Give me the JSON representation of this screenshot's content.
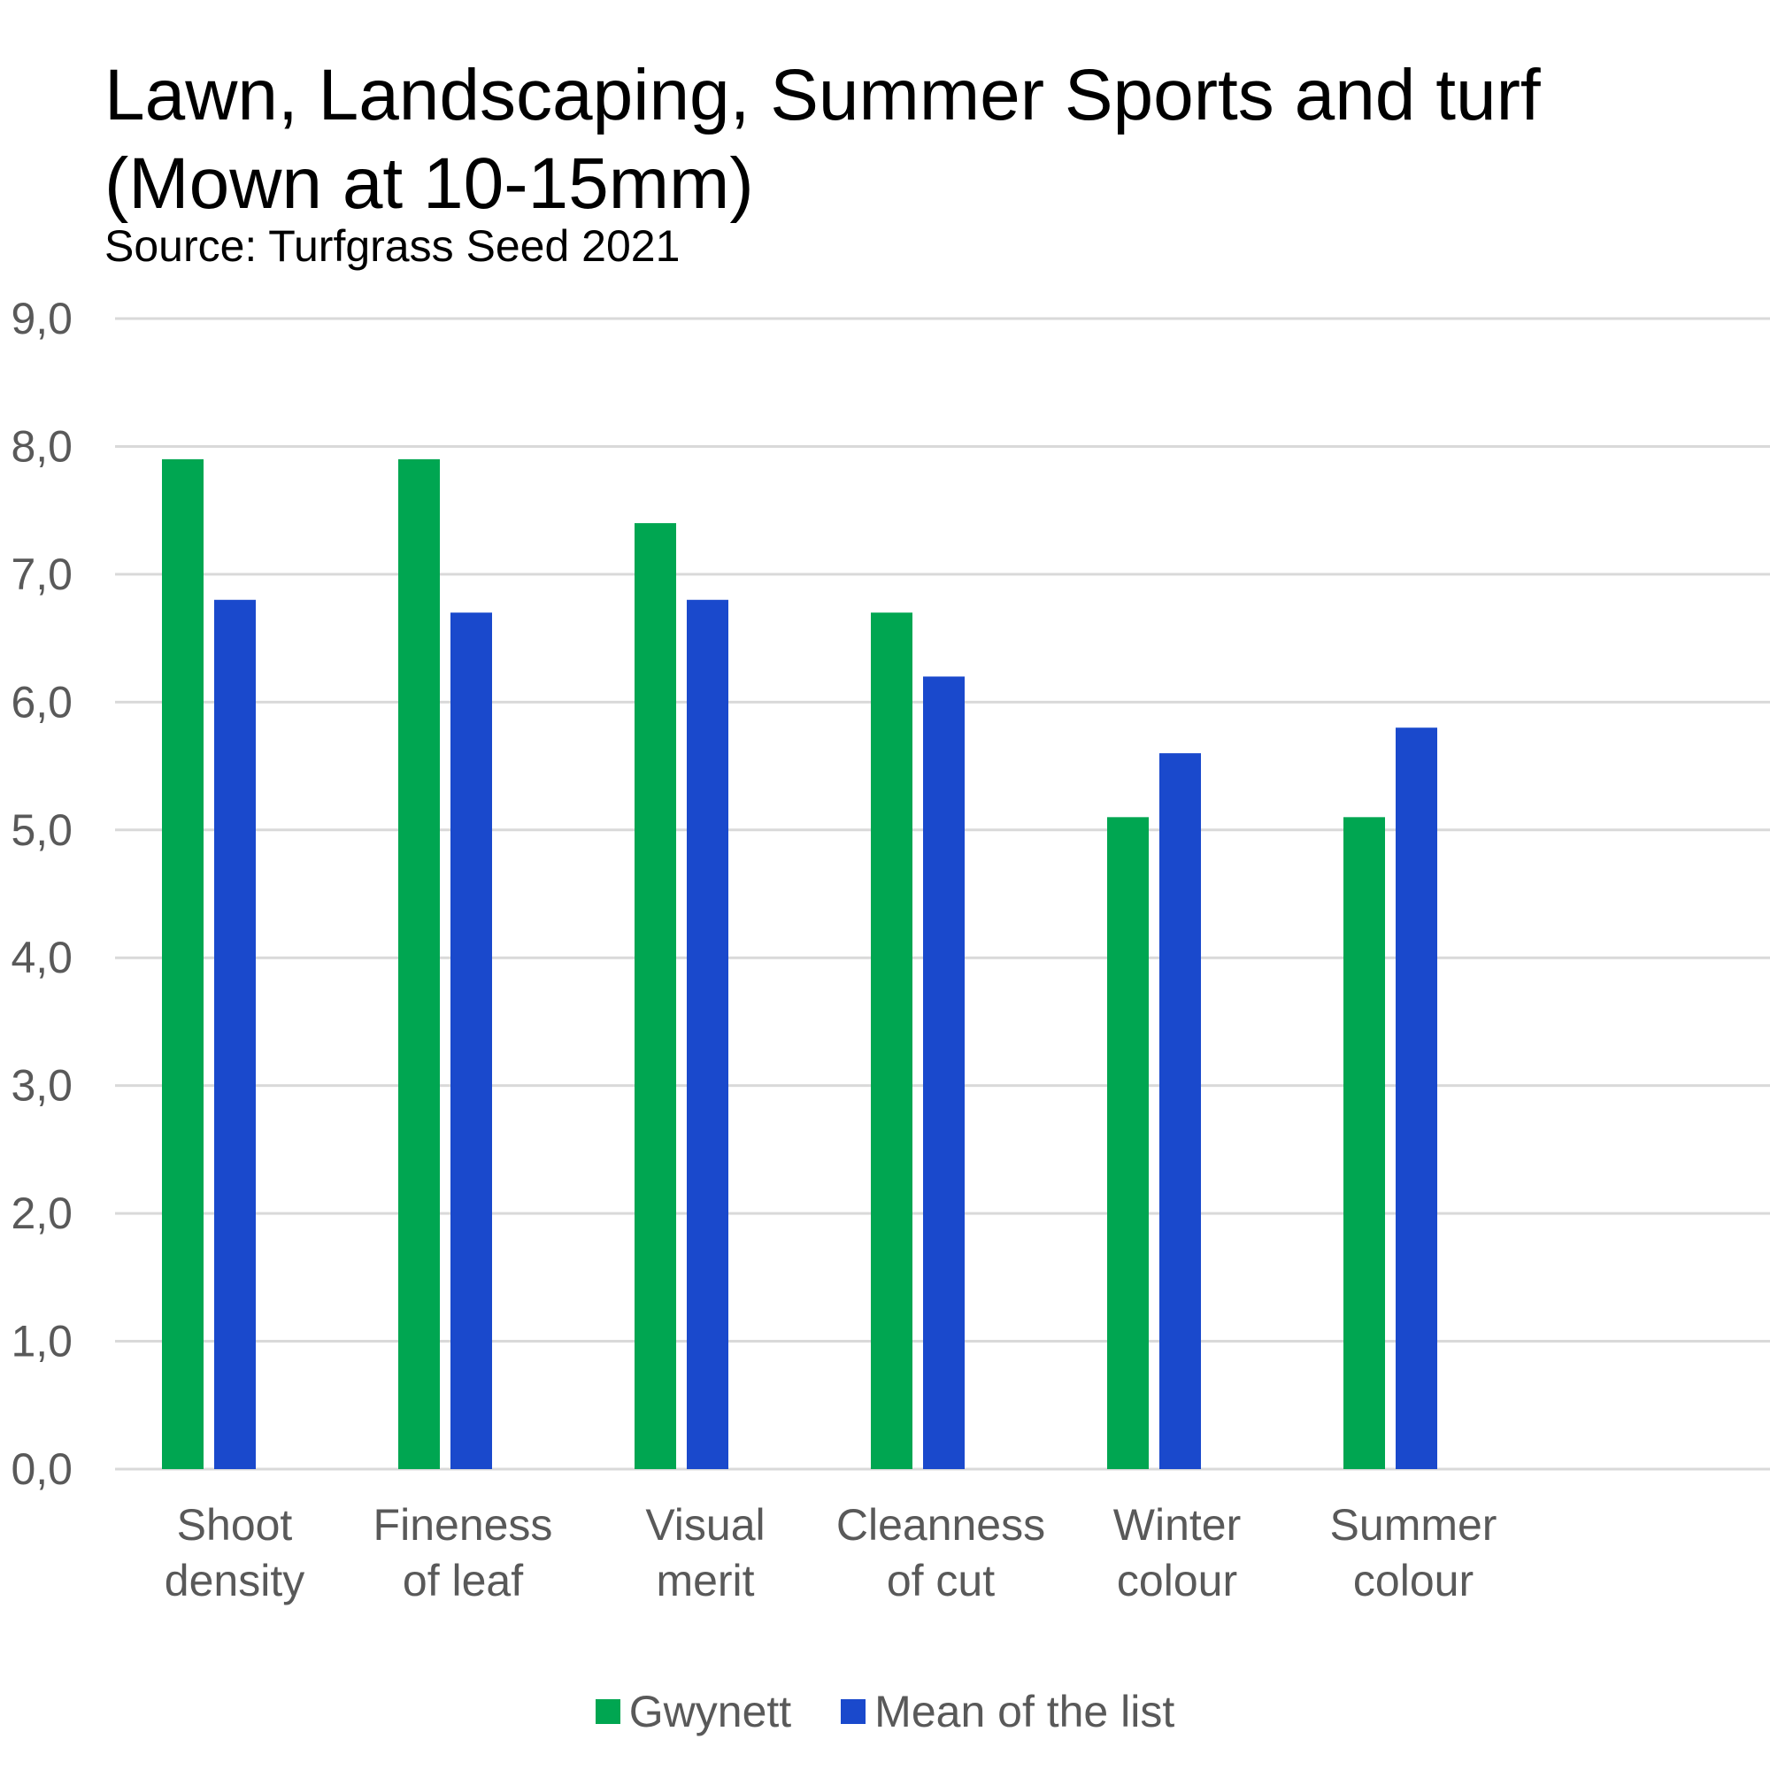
{
  "chart_data": {
    "type": "bar",
    "title": "Lawn, Landscaping, Summer Sports and turf (Mown at 10-15mm)",
    "subtitle": "Source: Turfgrass Seed 2021",
    "categories": [
      [
        "Shoot",
        "density"
      ],
      [
        "Fineness",
        "of leaf"
      ],
      [
        "Visual",
        "merit"
      ],
      [
        "Cleanness",
        "of cut"
      ],
      [
        "Winter",
        "colour"
      ],
      [
        "Summer",
        "colour"
      ]
    ],
    "series": [
      {
        "name": "Gwynett",
        "color": "#00A651",
        "values": [
          7.9,
          7.9,
          7.4,
          6.7,
          5.1,
          5.1
        ]
      },
      {
        "name": "Mean of the list",
        "color": "#1A49CC",
        "values": [
          6.8,
          6.7,
          6.8,
          6.2,
          5.6,
          5.8
        ]
      }
    ],
    "ylim": [
      0,
      9
    ],
    "yticks": [
      "0,0",
      "1,0",
      "2,0",
      "3,0",
      "4,0",
      "5,0",
      "6,0",
      "7,0",
      "8,0",
      "9,0"
    ],
    "grid": true,
    "legend_position": "bottom",
    "xlabel": "",
    "ylabel": ""
  }
}
